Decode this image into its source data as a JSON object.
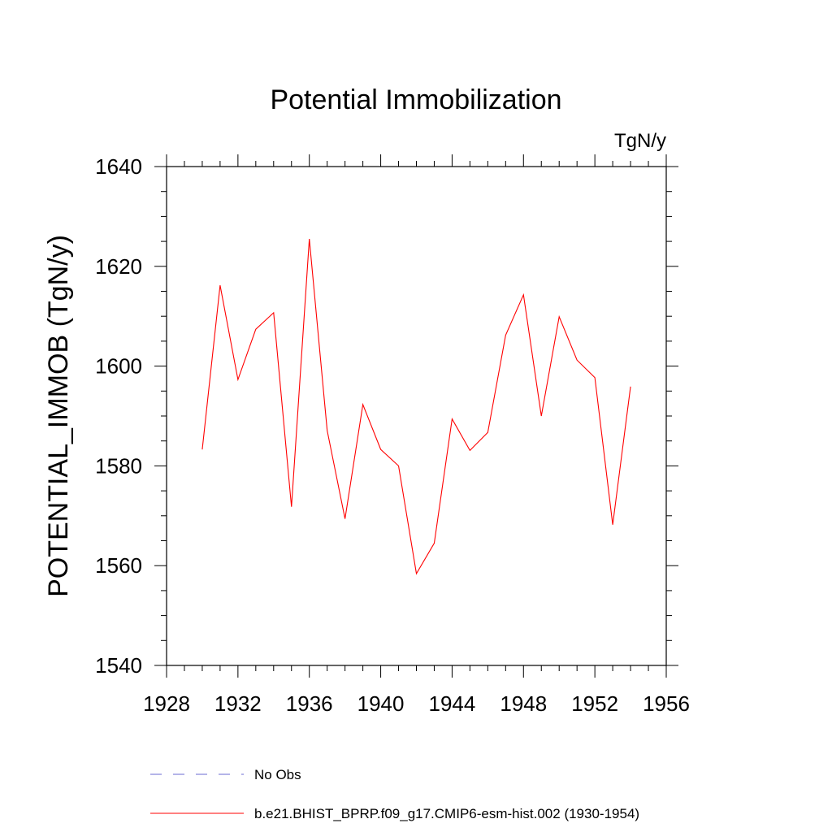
{
  "chart_data": {
    "type": "line",
    "title": "Potential Immobilization",
    "units_label": "TgN/y",
    "ylabel": "POTENTIAL_IMMOB  (TgN/y)",
    "xlabel": "",
    "xlim": [
      1928,
      1956
    ],
    "ylim": [
      1540,
      1640
    ],
    "x_ticks": [
      1928,
      1932,
      1936,
      1940,
      1944,
      1948,
      1952,
      1956
    ],
    "x_minor_step": 1,
    "y_ticks": [
      1540,
      1560,
      1580,
      1600,
      1620,
      1640
    ],
    "y_minor_step": 5,
    "x_tick_labels": [
      "1928",
      "1932",
      "1936",
      "1940",
      "1944",
      "1948",
      "1952",
      "1956"
    ],
    "y_tick_labels": [
      "1540",
      "1560",
      "1580",
      "1600",
      "1620",
      "1640"
    ],
    "series": [
      {
        "name": "b.e21.BHIST_BPRP.f09_g17.CMIP6-esm-hist.002 (1930-1954)",
        "color": "#ff0000",
        "style": "solid",
        "x": [
          1930,
          1931,
          1932,
          1933,
          1934,
          1935,
          1936,
          1937,
          1938,
          1939,
          1940,
          1941,
          1942,
          1943,
          1944,
          1945,
          1946,
          1947,
          1948,
          1949,
          1950,
          1951,
          1952,
          1953,
          1954
        ],
        "values": [
          1583.3,
          1616.2,
          1597.3,
          1607.4,
          1610.7,
          1571.8,
          1625.5,
          1587.1,
          1569.4,
          1592.3,
          1583.3,
          1580.0,
          1558.4,
          1564.5,
          1589.4,
          1583.1,
          1586.7,
          1606.2,
          1614.3,
          1590.0,
          1609.9,
          1601.2,
          1597.7,
          1568.2,
          1595.9
        ]
      }
    ],
    "legend": {
      "placement": "bottom-left",
      "entries": [
        {
          "label": "No Obs",
          "color": "#6a6ad0",
          "style": "dashed"
        },
        {
          "label": "b.e21.BHIST_BPRP.f09_g17.CMIP6-esm-hist.002 (1930-1954)",
          "color": "#ff0000",
          "style": "solid"
        }
      ]
    }
  }
}
